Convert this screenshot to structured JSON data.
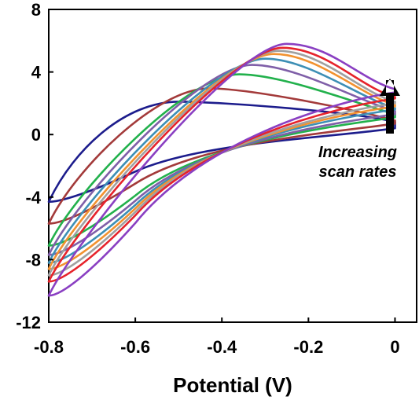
{
  "chart_data": {
    "type": "line",
    "title": "",
    "xlabel": "Potential (V)",
    "ylabel": "",
    "xlim": [
      -0.8,
      0.05
    ],
    "ylim": [
      -12,
      8
    ],
    "x_ticks": [
      "-0.8",
      "-0.6",
      "-0.4",
      "-0.2",
      "0"
    ],
    "x_tick_values": [
      -0.8,
      -0.6,
      -0.4,
      -0.2,
      0
    ],
    "y_ticks": [
      "8",
      "4",
      "0",
      "-4",
      "-8",
      "-12"
    ],
    "y_tick_values": [
      8,
      4,
      0,
      -4,
      -8,
      -12
    ],
    "grid": false,
    "legend": "none",
    "annotation": {
      "lines": [
        "Increasing",
        "scan rates"
      ],
      "arrow": "up"
    },
    "series": [
      {
        "color": "#1c1c8c",
        "peak": [
          -0.5,
          2.1
        ],
        "start_y": -4.3,
        "end_anodic_y": 0.8,
        "end_cathodic_y": 0.4,
        "low_y": -4.3
      },
      {
        "color": "#a33a3a",
        "peak": [
          -0.43,
          2.95
        ],
        "start_y": -5.7,
        "end_anodic_y": 0.9,
        "end_cathodic_y": 0.7,
        "low_y": -5.7
      },
      {
        "color": "#22b14c",
        "peak": [
          -0.36,
          3.85
        ],
        "start_y": -7.1,
        "end_anodic_y": 1.3,
        "end_cathodic_y": 1.1,
        "low_y": -7.1
      },
      {
        "color": "#7f5fa8",
        "peak": [
          -0.33,
          4.45
        ],
        "start_y": -7.7,
        "end_anodic_y": 1.5,
        "end_cathodic_y": 1.3,
        "low_y": -7.7
      },
      {
        "color": "#3d8fb5",
        "peak": [
          -0.3,
          4.85
        ],
        "start_y": -8.2,
        "end_anodic_y": 1.7,
        "end_cathodic_y": 1.6,
        "low_y": -8.2
      },
      {
        "color": "#f29230",
        "peak": [
          -0.28,
          5.15
        ],
        "start_y": -8.6,
        "end_anodic_y": 1.9,
        "end_cathodic_y": 1.8,
        "low_y": -8.6
      },
      {
        "color": "#a0a0a0",
        "peak": [
          -0.27,
          5.35
        ],
        "start_y": -9.0,
        "end_anodic_y": 2.1,
        "end_cathodic_y": 2.0,
        "low_y": -9.0
      },
      {
        "color": "#e6232b",
        "peak": [
          -0.26,
          5.55
        ],
        "start_y": -9.4,
        "end_anodic_y": 2.4,
        "end_cathodic_y": 2.3,
        "low_y": -9.4
      },
      {
        "color": "#8a3fc2",
        "peak": [
          -0.25,
          5.8
        ],
        "start_y": -10.3,
        "end_anodic_y": 2.9,
        "end_cathodic_y": 2.7,
        "low_y": -10.3
      }
    ]
  }
}
